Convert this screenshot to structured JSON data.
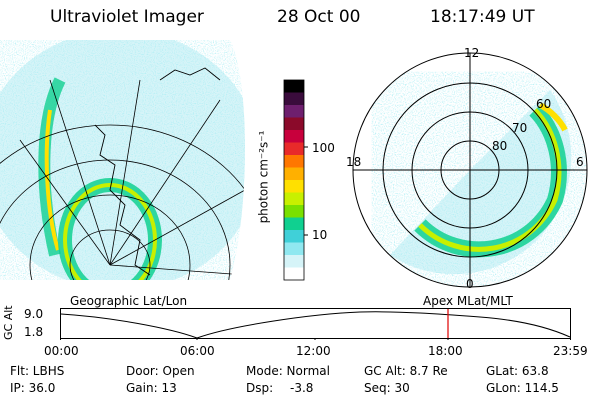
{
  "header": {
    "title": "Ultraviolet Imager",
    "date": "28 Oct 00",
    "time": "18:17:49 UT"
  },
  "colorbar": {
    "unit_label": "photon cm⁻²s⁻¹",
    "ticks": [
      "100",
      "10"
    ],
    "colors": [
      "#000000",
      "#3a0c3c",
      "#6e1f6e",
      "#8b0a2a",
      "#c8003c",
      "#e82a2a",
      "#ff7700",
      "#ffb000",
      "#ffe000",
      "#c8f000",
      "#7ae000",
      "#10d090",
      "#40d0d8",
      "#90e8f0",
      "#d6f4f8",
      "#ffffff"
    ]
  },
  "geo_panel": {
    "label": "Geographic Lat/Lon"
  },
  "polar_panel": {
    "label": "Apex  MLat/MLT",
    "mlt_labels": {
      "top": "12",
      "left": "18",
      "right": "6",
      "bottom": "0"
    },
    "lat_labels": [
      "60",
      "70",
      "80"
    ]
  },
  "altitude_plot": {
    "ylabel": "GC Alt",
    "yticks": [
      "9.0",
      "1.8"
    ],
    "xticks": [
      "00:00",
      "06:00",
      "12:00",
      "18:00",
      "23:59"
    ],
    "marker_color": "#e00000"
  },
  "info": {
    "filter": "Flt: LBHS",
    "ip": "IP: 36.0",
    "door": "Door: Open",
    "gain": "Gain: 13",
    "mode": "Mode: Normal",
    "dsp_label": "Dsp:",
    "dsp_value": "-3.8",
    "gc_alt": "GC Alt: 8.7 Re",
    "seq": "Seq: 30",
    "glat": "GLat:  63.8",
    "glon": "GLon: 114.5"
  }
}
